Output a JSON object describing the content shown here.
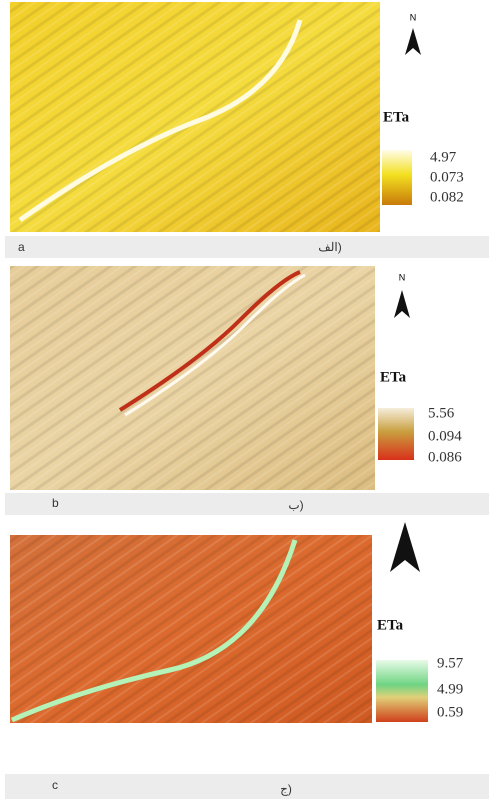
{
  "panels": [
    {
      "north": "N",
      "legend": {
        "title": "ETa",
        "labels": [
          "4.97",
          "0.073",
          "0.082"
        ]
      },
      "caption": {
        "latin": "a",
        "persian": "الف)"
      }
    },
    {
      "north": "N",
      "legend": {
        "title": "ETa",
        "labels": [
          "5.56",
          "0.094",
          "0.086"
        ]
      },
      "caption": {
        "latin": "b",
        "persian": "ب)"
      }
    },
    {
      "legend": {
        "title": "ETa",
        "labels": [
          "9.57",
          "4.99",
          "0.59"
        ]
      },
      "caption": {
        "latin": "c",
        "persian": "ج)"
      }
    }
  ]
}
